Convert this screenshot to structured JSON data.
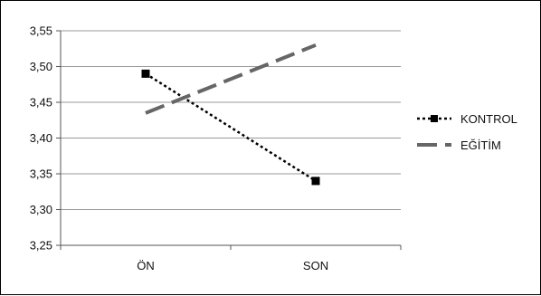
{
  "chart_data": {
    "type": "line",
    "title": "",
    "xlabel": "",
    "ylabel": "",
    "categories": [
      "ÖN",
      "SON"
    ],
    "ylim": [
      3.25,
      3.55
    ],
    "yticks": [
      "3,25",
      "3,30",
      "3,35",
      "3,40",
      "3,45",
      "3,50",
      "3,55"
    ],
    "ytick_values": [
      3.25,
      3.3,
      3.35,
      3.4,
      3.45,
      3.5,
      3.55
    ],
    "grid": true,
    "legend_position": "right",
    "series": [
      {
        "name": "KONTROL",
        "values": [
          3.49,
          3.34
        ],
        "color": "#000000",
        "line_style": "dotted",
        "marker": "square"
      },
      {
        "name": "EĞİTİM",
        "values": [
          3.435,
          3.53
        ],
        "color": "#666666",
        "line_style": "dashed",
        "marker": "none"
      }
    ]
  }
}
